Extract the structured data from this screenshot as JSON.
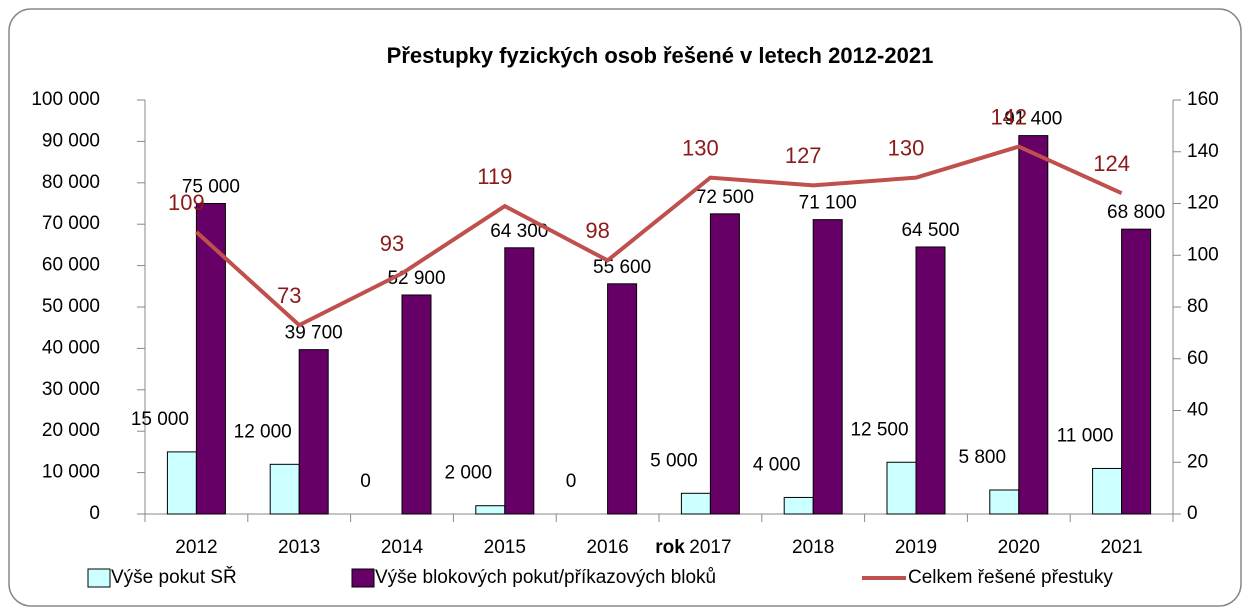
{
  "chart_data": {
    "type": "bar",
    "title": "Přestupky fyzických osob řešené v letech 2012-2021",
    "x_label": "rok",
    "categories": [
      "2012",
      "2013",
      "2014",
      "2015",
      "2016",
      "2017",
      "2018",
      "2019",
      "2020",
      "2021"
    ],
    "series": [
      {
        "name": "Výše pokut SŘ",
        "type": "bar",
        "color": "#ccffff",
        "values": [
          15000,
          12000,
          0,
          2000,
          0,
          5000,
          4000,
          12500,
          5800,
          11000
        ],
        "value_labels": [
          "15 000",
          "12 000",
          "0",
          "2 000",
          "0",
          "5 000",
          "4 000",
          "12 500",
          "5 800",
          "11 000"
        ]
      },
      {
        "name": "Výše blokových pokut/příkazových bloků",
        "type": "bar",
        "color": "#660066",
        "values": [
          75000,
          39700,
          52900,
          64300,
          55600,
          72500,
          71100,
          64500,
          91400,
          68800
        ],
        "value_labels": [
          "75 000",
          "39 700",
          "52 900",
          "64 300",
          "55 600",
          "72 500",
          "71 100",
          "64 500",
          "91 400",
          "68 800"
        ]
      },
      {
        "name": "Celkem řešené přestuky",
        "type": "line",
        "axis": "y2",
        "color": "#c0504d",
        "values": [
          109,
          73,
          93,
          119,
          98,
          130,
          127,
          130,
          142,
          124
        ]
      }
    ],
    "ylim": [
      0,
      100000
    ],
    "yticks": [
      {
        "value": 0,
        "label": "0"
      },
      {
        "value": 10000,
        "label": "10 000"
      },
      {
        "value": 20000,
        "label": "20 000"
      },
      {
        "value": 30000,
        "label": "30 000"
      },
      {
        "value": 40000,
        "label": "40 000"
      },
      {
        "value": 50000,
        "label": "50 000"
      },
      {
        "value": 60000,
        "label": "60 000"
      },
      {
        "value": 70000,
        "label": "70 000"
      },
      {
        "value": 80000,
        "label": "80 000"
      },
      {
        "value": 90000,
        "label": "90 000"
      },
      {
        "value": 100000,
        "label": "100 000"
      }
    ],
    "y2lim": [
      0,
      160
    ],
    "y2ticks": [
      0,
      20,
      40,
      60,
      80,
      100,
      120,
      140,
      160
    ],
    "legend": "bottom"
  }
}
